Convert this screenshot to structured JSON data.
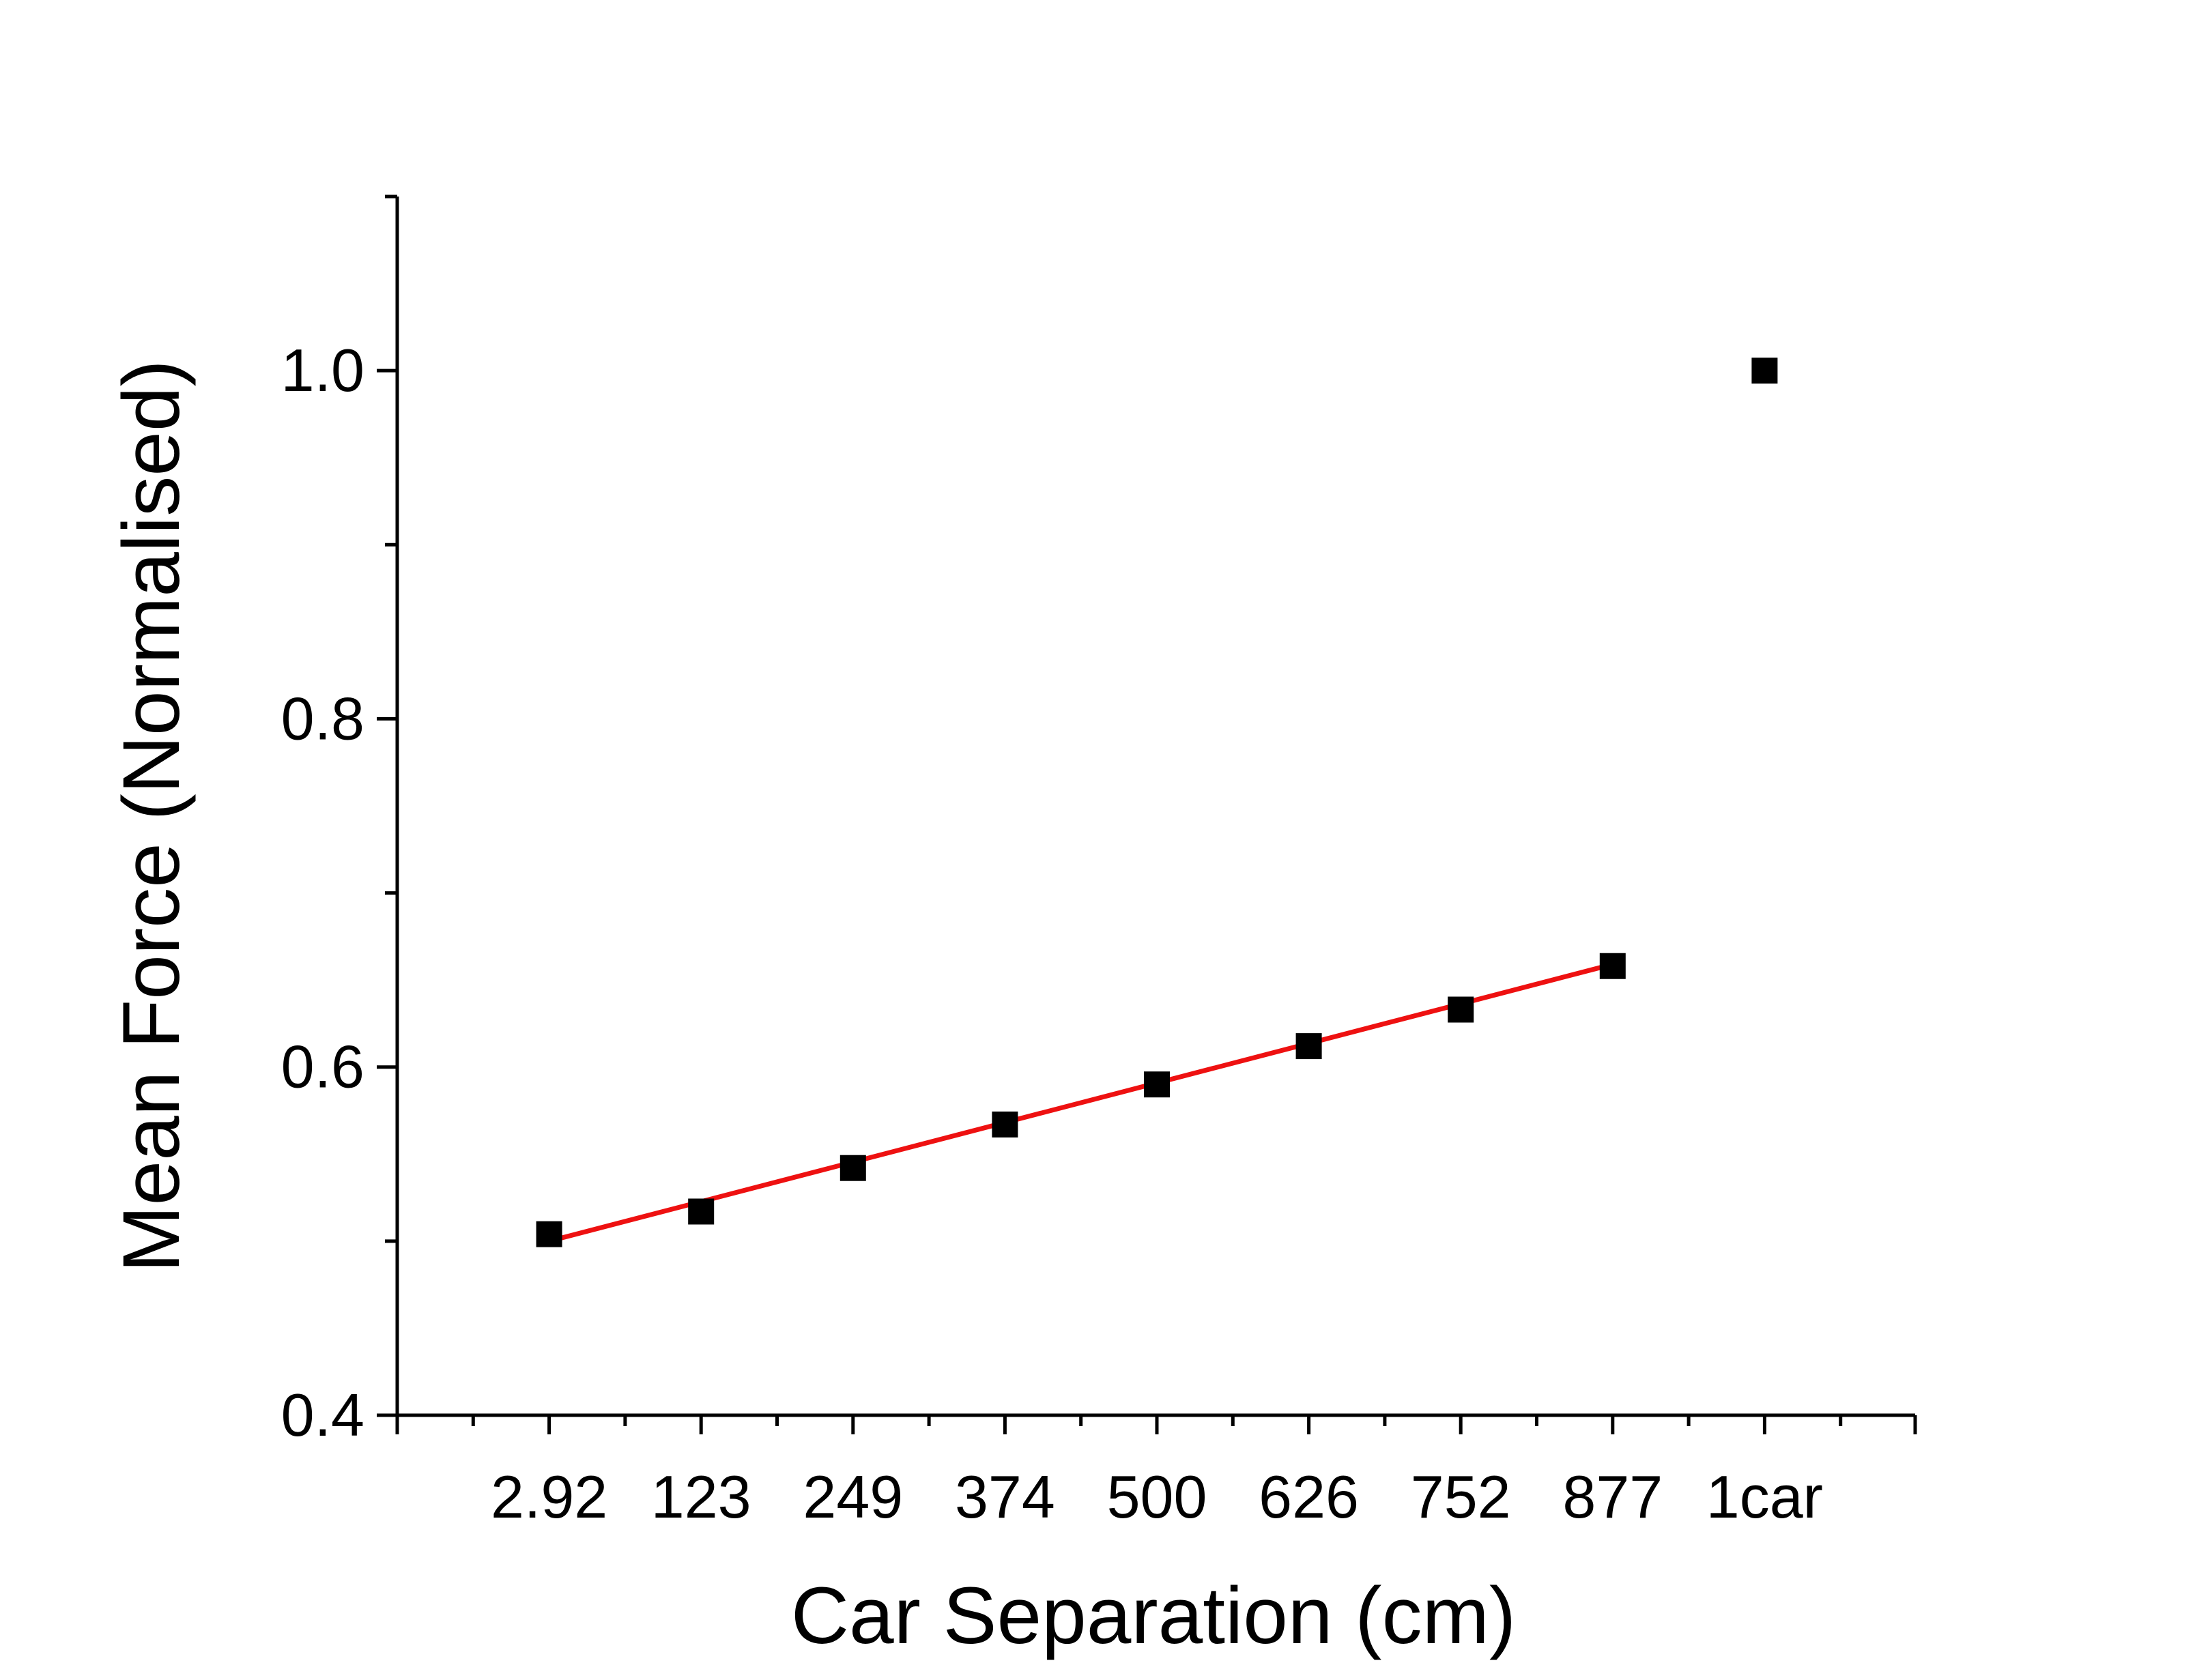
{
  "chart_data": {
    "type": "scatter",
    "title": "",
    "xlabel": "Car Separation (cm)",
    "ylabel": "Mean Force (Normalised)",
    "categories": [
      "2.92",
      "123",
      "249",
      "374",
      "500",
      "626",
      "752",
      "877",
      "1car"
    ],
    "ylim": [
      0.4,
      1.1
    ],
    "y_ticks": [
      0.4,
      0.6,
      0.8,
      1.0
    ],
    "y_tick_labels": [
      "0.4",
      "0.6",
      "0.8",
      "1.0"
    ],
    "grid": false,
    "legend": "none",
    "series": [
      {
        "kind": "points",
        "marker": "square",
        "color": "#000000",
        "values": [
          0.504,
          0.517,
          0.542,
          0.567,
          0.59,
          0.612,
          0.633,
          0.658,
          1.0
        ]
      },
      {
        "kind": "fit-line",
        "color": "#ee1111",
        "start_category": "2.92",
        "end_category": "877",
        "start_value": 0.5,
        "end_value": 0.659
      }
    ]
  }
}
